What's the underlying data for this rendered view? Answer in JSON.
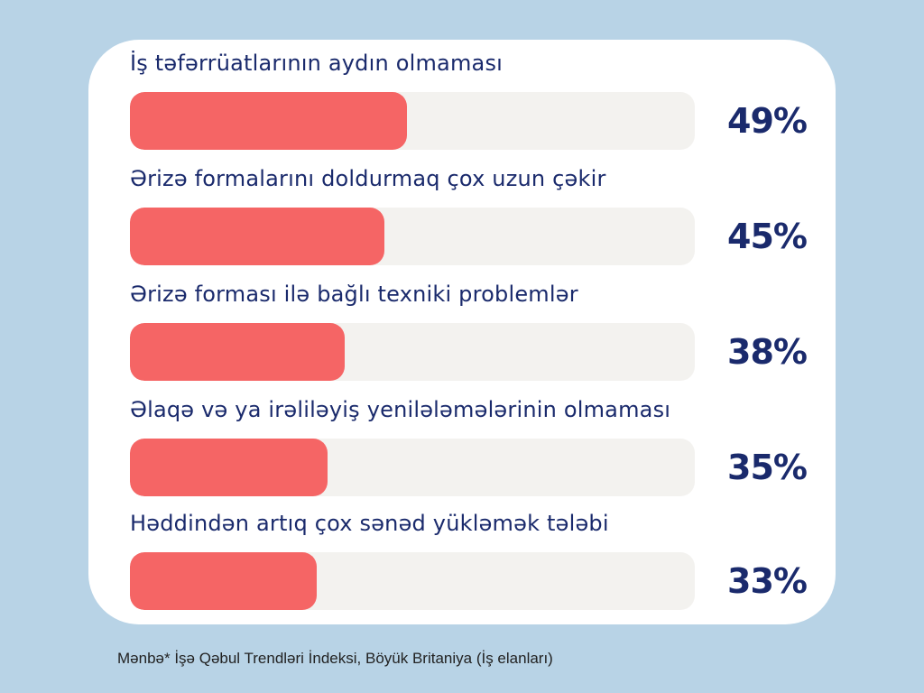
{
  "colors": {
    "background": "#b8d3e6",
    "card": "#ffffff",
    "bar_fill": "#f56565",
    "bar_track": "#f3f2ef",
    "text": "#1a2a6c"
  },
  "chart_data": {
    "type": "bar",
    "orientation": "horizontal",
    "categories": [
      "İş təfərrüatlarının aydın olmaması",
      "Ərizə formalarını doldurmaq çox uzun çəkir",
      "Ərizə forması ilə bağlı texniki problemlər",
      "Əlaqə və ya irəliləyiş yenilələmələrinin olmaması",
      "Həddindən artıq çox sənəd yükləmək tələbi"
    ],
    "values": [
      49,
      45,
      38,
      35,
      33
    ],
    "value_labels": [
      "49%",
      "45%",
      "38%",
      "35%",
      "33%"
    ],
    "xlim": [
      0,
      100
    ],
    "grid": false
  },
  "source": "Mənbə*  İşə Qəbul Trendləri İndeksi, Böyük Britaniya  (İş elanları)"
}
